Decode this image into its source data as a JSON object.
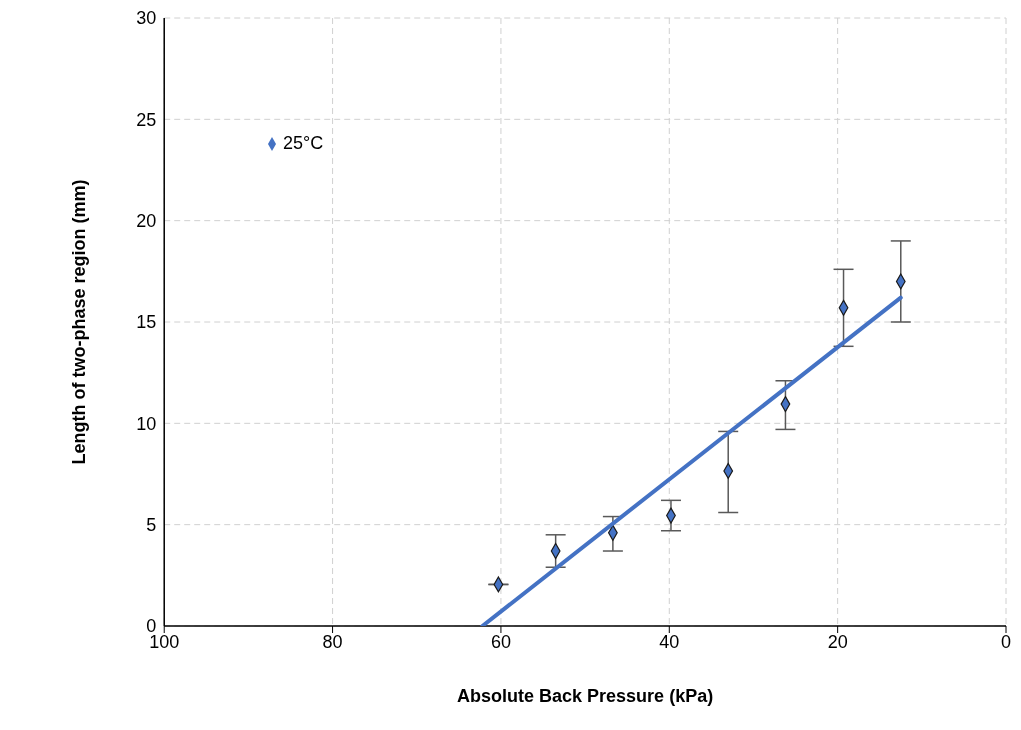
{
  "chart_data": {
    "type": "scatter",
    "xlabel": "Absolute Back Pressure (kPa)",
    "ylabel": "Length of two-phase region (mm)",
    "xlim": [
      100,
      0
    ],
    "xticks": [
      100,
      80,
      60,
      40,
      20,
      0
    ],
    "ylim": [
      0,
      30
    ],
    "yticks": [
      0,
      5,
      10,
      15,
      20,
      25,
      30
    ],
    "grid": true,
    "legend": "top left",
    "series": [
      {
        "name": "25°C",
        "marker": "diamond",
        "color": "#4472c4",
        "x": [
          60.3,
          53.5,
          46.7,
          39.8,
          33.0,
          26.2,
          19.3,
          12.5
        ],
        "values": [
          2.05,
          3.7,
          4.6,
          5.45,
          7.65,
          10.95,
          15.7,
          17.0
        ],
        "errors": [
          null,
          [
            2.9,
            4.5
          ],
          [
            3.7,
            5.4
          ],
          [
            4.7,
            6.2
          ],
          [
            5.6,
            9.6
          ],
          [
            9.7,
            12.1
          ],
          [
            13.8,
            17.6
          ],
          [
            15.0,
            19.0
          ]
        ]
      },
      {
        "type": "line",
        "color": "#4472c4",
        "x": [
          62.2,
          12.5
        ],
        "values": [
          0,
          16.2
        ]
      }
    ]
  }
}
